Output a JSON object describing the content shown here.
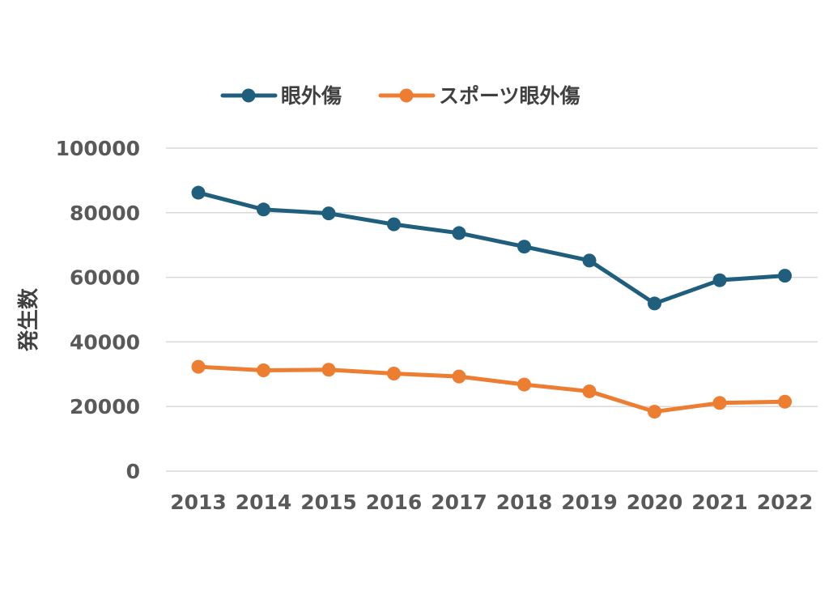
{
  "chart_data": {
    "type": "line",
    "title": "",
    "xlabel": "",
    "ylabel": "発生数",
    "categories": [
      "2013",
      "2014",
      "2015",
      "2016",
      "2017",
      "2018",
      "2019",
      "2020",
      "2021",
      "2022"
    ],
    "ylim": [
      0,
      100000
    ],
    "yticks": [
      "0",
      "20000",
      "40000",
      "60000",
      "80000",
      "100000"
    ],
    "grid": true,
    "legend_position": "top",
    "series": [
      {
        "name": "眼外傷",
        "color": "#1f5f7d",
        "values": [
          86200,
          81000,
          79800,
          76400,
          73700,
          69500,
          65200,
          51900,
          59100,
          60500
        ]
      },
      {
        "name": "スポーツ眼外傷",
        "color": "#ed7d31",
        "values": [
          32300,
          31200,
          31400,
          30200,
          29300,
          26800,
          24700,
          18400,
          21100,
          21500
        ]
      }
    ]
  }
}
